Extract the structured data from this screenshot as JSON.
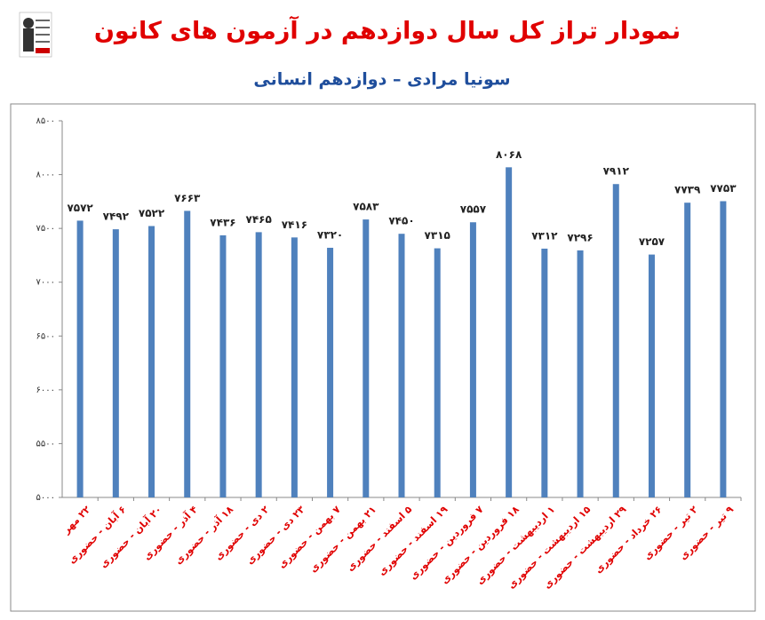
{
  "chart_data": {
    "type": "bar",
    "title": "نمودار تراز کل سال دوازدهم در آزمون های کانون",
    "subtitle": "سونیا مرادی – دوازدهم انسانی",
    "categories": [
      "۲۲ مهر",
      "۶ آبان - حضوری",
      "۲۰ آبان - حضوری",
      "۴ آذر - حضوری",
      "۱۸ آذر - حضوری",
      "۲ دی - حضوری",
      "۲۳ دی - حضوری",
      "۷ بهمن - حضوری",
      "۲۱ بهمن - حضوری",
      "۵ اسفند - حضوری",
      "۱۹ اسفند - حضوری",
      "۷ فروردین - حضوری",
      "۱۸ فروردین - حضوری",
      "۱ اردیبهشت - حضوری",
      "۱۵ اردیبهشت - حضوری",
      "۲۹ اردیبهشت - حضوری",
      "۲۶ خرداد - حضوری",
      "۲ تیر - حضوری",
      "۹ تیر - حضوری"
    ],
    "values": [
      7572,
      7492,
      7522,
      7663,
      7436,
      7465,
      7416,
      7320,
      7583,
      7450,
      7315,
      7557,
      8068,
      7312,
      7296,
      7912,
      7257,
      7739,
      7753
    ],
    "value_labels": [
      "۷۵۷۲",
      "۷۴۹۲",
      "۷۵۲۲",
      "۷۶۶۳",
      "۷۴۳۶",
      "۷۴۶۵",
      "۷۴۱۶",
      "۷۳۲۰",
      "۷۵۸۳",
      "۷۴۵۰",
      "۷۳۱۵",
      "۷۵۵۷",
      "۸۰۶۸",
      "۷۳۱۲",
      "۷۲۹۶",
      "۷۹۱۲",
      "۷۲۵۷",
      "۷۷۳۹",
      "۷۷۵۳"
    ],
    "color": "#4f81bd",
    "ylim": [
      5000,
      8500
    ],
    "yticks": [
      {
        "value": 5000,
        "label": "۵۰۰۰"
      },
      {
        "value": 5500,
        "label": "۵۵۰۰"
      },
      {
        "value": 6000,
        "label": "۶۰۰۰"
      },
      {
        "value": 6500,
        "label": "۶۵۰۰"
      },
      {
        "value": 7000,
        "label": "۷۰۰۰"
      },
      {
        "value": 7500,
        "label": "۷۵۰۰"
      },
      {
        "value": 8000,
        "label": "۸۰۰۰"
      },
      {
        "value": 8500,
        "label": "۸۵۰۰"
      }
    ],
    "grid": false
  }
}
